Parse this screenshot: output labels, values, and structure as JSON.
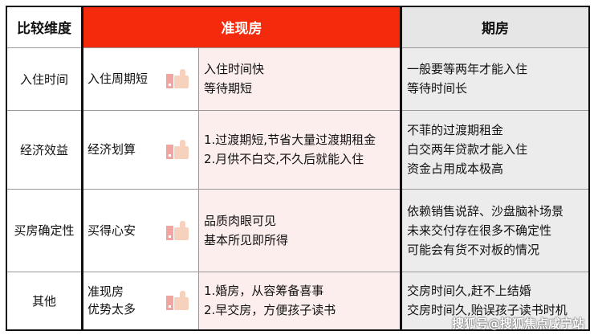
{
  "header": {
    "dimension": "比较维度",
    "quasi": "准现房",
    "future": "期房"
  },
  "colors": {
    "quasi_header": "#f42a0c",
    "quasi_bg": "#fdeeee",
    "future_bg": "#ececec"
  },
  "rows": [
    {
      "dimension": "入住时间",
      "advantage": [
        "入住周期短"
      ],
      "quasi": [
        "入住时间快",
        "等待期短"
      ],
      "future": [
        "一般要等两年才能入住",
        "等待时间长"
      ]
    },
    {
      "dimension": "经济效益",
      "advantage": [
        "经济划算"
      ],
      "quasi": [
        "1.过渡期短,节省大量过渡期租金",
        "2.月供不白交,不久后就能入住"
      ],
      "future": [
        "不菲的过渡期租金",
        "白交两年贷款才能入住",
        "资金占用成本极高"
      ]
    },
    {
      "dimension": "买房确定性",
      "advantage": [
        "买得心安"
      ],
      "quasi": [
        "品质肉眼可见",
        "基本所见即所得"
      ],
      "future": [
        "依赖销售说辞、沙盘脑补场景",
        "未来交付存在很多不确定性",
        "可能会有货不对板的情况"
      ]
    },
    {
      "dimension": "其他",
      "advantage": [
        "准现房",
        "优势太多"
      ],
      "quasi": [
        "1.婚房，从容筹备喜事",
        "2.早交房，方便孩子读书"
      ],
      "future": [
        "交房时间久,赶不上结婚",
        "交房时间久,贻误孩子读书时机"
      ]
    }
  ],
  "icon": "thumbs-up-icon",
  "watermark": "搜狐号@搜狐焦点咸宁站"
}
